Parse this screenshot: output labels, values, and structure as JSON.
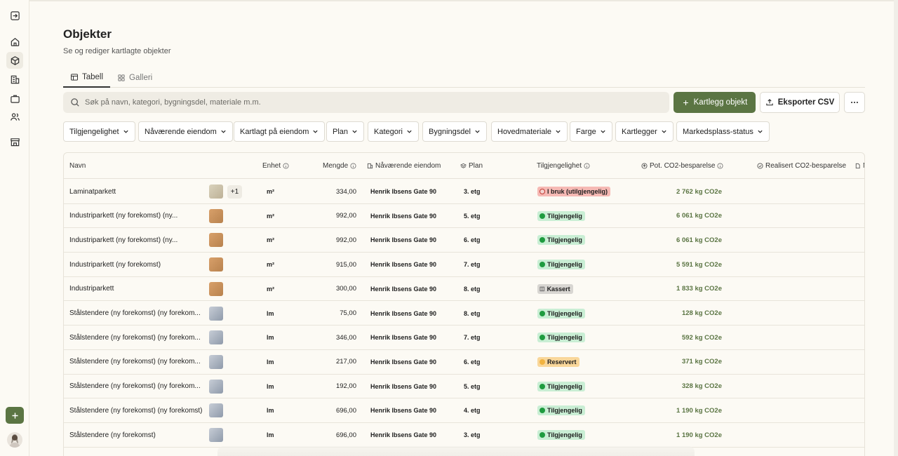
{
  "page": {
    "title": "Objekter",
    "subtitle": "Se og rediger kartlagte objekter"
  },
  "tabs": [
    {
      "label": "Tabell",
      "active": true
    },
    {
      "label": "Galleri",
      "active": false
    }
  ],
  "search": {
    "placeholder": "Søk på navn, kategori, bygningsdel, materiale m.m.",
    "value": ""
  },
  "actions": {
    "primary": "Kartlegg objekt",
    "export": "Eksporter CSV"
  },
  "filters": [
    "Tilgjengelighet",
    "Nåværende eiendom",
    "Kartlagt på eiendom",
    "Plan",
    "Kategori",
    "Bygningsdel",
    "Hovedmateriale",
    "Farge",
    "Kartlegger",
    "Markedsplass-status"
  ],
  "columns": [
    "Navn",
    "Enhet",
    "Mengde",
    "Nåværende eiendom",
    "Plan",
    "Tilgjengelighet",
    "Pot. CO2-besparelse",
    "Realisert CO2-besparelse",
    "M"
  ],
  "colors": {
    "accent": "#5b7543",
    "status_available_bg": "#c9eed4",
    "status_inuse_bg": "#f6b9b4",
    "status_discarded_bg": "#d8d6d2",
    "status_reserved_bg": "#f9d79a"
  },
  "rows": [
    {
      "name": "Laminatparkett",
      "thumb": "lam",
      "extra": "+1",
      "unit": "m²",
      "qty": "334,00",
      "property": "Henrik Ibsens Gate 90",
      "plan": "3. etg",
      "status": "I bruk (utilgjengelig)",
      "status_type": "inuse",
      "co2": "2 762 kg CO2e"
    },
    {
      "name": "Industriparkett (ny forekomst) (ny...",
      "thumb": "ind",
      "extra": "",
      "unit": "m²",
      "qty": "992,00",
      "property": "Henrik Ibsens Gate 90",
      "plan": "5. etg",
      "status": "Tilgjengelig",
      "status_type": "available",
      "co2": "6 061 kg CO2e"
    },
    {
      "name": "Industriparkett (ny forekomst) (ny...",
      "thumb": "ind",
      "extra": "",
      "unit": "m²",
      "qty": "992,00",
      "property": "Henrik Ibsens Gate 90",
      "plan": "6. etg",
      "status": "Tilgjengelig",
      "status_type": "available",
      "co2": "6 061 kg CO2e"
    },
    {
      "name": "Industriparkett (ny forekomst)",
      "thumb": "ind",
      "extra": "",
      "unit": "m²",
      "qty": "915,00",
      "property": "Henrik Ibsens Gate 90",
      "plan": "7. etg",
      "status": "Tilgjengelig",
      "status_type": "available",
      "co2": "5 591 kg CO2e"
    },
    {
      "name": "Industriparkett",
      "thumb": "ind",
      "extra": "",
      "unit": "m²",
      "qty": "300,00",
      "property": "Henrik Ibsens Gate 90",
      "plan": "8. etg",
      "status": "Kassert",
      "status_type": "discarded",
      "co2": "1 833 kg CO2e"
    },
    {
      "name": "Stålstendere (ny forekomst) (ny forekom...",
      "thumb": "steel",
      "extra": "",
      "unit": "lm",
      "qty": "75,00",
      "property": "Henrik Ibsens Gate 90",
      "plan": "8. etg",
      "status": "Tilgjengelig",
      "status_type": "available",
      "co2": "128 kg CO2e"
    },
    {
      "name": "Stålstendere (ny forekomst) (ny forekom...",
      "thumb": "steel",
      "extra": "",
      "unit": "lm",
      "qty": "346,00",
      "property": "Henrik Ibsens Gate 90",
      "plan": "7. etg",
      "status": "Tilgjengelig",
      "status_type": "available",
      "co2": "592 kg CO2e"
    },
    {
      "name": "Stålstendere (ny forekomst) (ny forekom...",
      "thumb": "steel",
      "extra": "",
      "unit": "lm",
      "qty": "217,00",
      "property": "Henrik Ibsens Gate 90",
      "plan": "6. etg",
      "status": "Reservert",
      "status_type": "reserved",
      "co2": "371 kg CO2e"
    },
    {
      "name": "Stålstendere (ny forekomst) (ny forekom...",
      "thumb": "steel",
      "extra": "",
      "unit": "lm",
      "qty": "192,00",
      "property": "Henrik Ibsens Gate 90",
      "plan": "5. etg",
      "status": "Tilgjengelig",
      "status_type": "available",
      "co2": "328 kg CO2e"
    },
    {
      "name": "Stålstendere (ny forekomst) (ny forekomst)",
      "thumb": "steel",
      "extra": "",
      "unit": "lm",
      "qty": "696,00",
      "property": "Henrik Ibsens Gate 90",
      "plan": "4. etg",
      "status": "Tilgjengelig",
      "status_type": "available",
      "co2": "1 190 kg CO2e"
    },
    {
      "name": "Stålstendere (ny forekomst)",
      "thumb": "steel",
      "extra": "",
      "unit": "lm",
      "qty": "696,00",
      "property": "Henrik Ibsens Gate 90",
      "plan": "3. etg",
      "status": "Tilgjengelig",
      "status_type": "available",
      "co2": "1 190 kg CO2e"
    }
  ]
}
